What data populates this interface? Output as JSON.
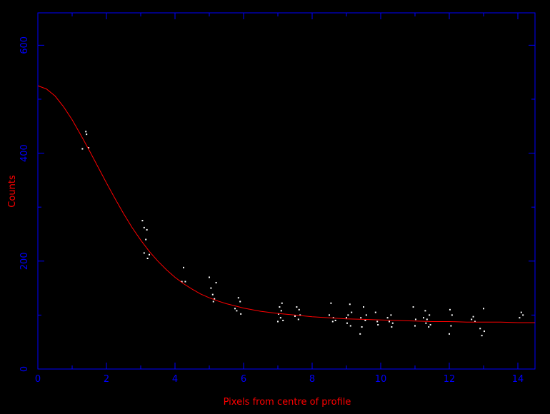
{
  "chart_data": {
    "type": "scatter",
    "title": "",
    "xlabel": "Pixels from centre of profile",
    "ylabel": "Counts",
    "xlim": [
      0,
      14.5
    ],
    "ylim": [
      0,
      660
    ],
    "x_ticks": [
      0,
      2,
      4,
      6,
      8,
      10,
      12,
      14
    ],
    "y_ticks": [
      0,
      200,
      400,
      600
    ],
    "x_tick_labels": [
      "0",
      "2",
      "4",
      "6",
      "8",
      "10",
      "12",
      "14"
    ],
    "y_tick_labels": [
      "0",
      "200",
      "400",
      "600"
    ],
    "grid": false,
    "legend": "none",
    "colors": {
      "background": "#000000",
      "axes": "#0000ff",
      "labels": "#ff0000",
      "fit_line": "#ff0000",
      "points": "#ffffff"
    },
    "fit_curve": {
      "x": [
        0,
        0.25,
        0.5,
        0.75,
        1,
        1.25,
        1.5,
        1.75,
        2,
        2.25,
        2.5,
        2.75,
        3,
        3.25,
        3.5,
        3.75,
        4,
        4.25,
        4.5,
        4.75,
        5,
        5.25,
        5.5,
        5.75,
        6,
        6.5,
        7,
        7.5,
        8,
        8.5,
        9,
        9.5,
        10,
        10.5,
        11,
        11.5,
        12,
        12.5,
        13,
        13.5,
        14,
        14.5
      ],
      "y": [
        525,
        519,
        506,
        486,
        462,
        434,
        405,
        375,
        345,
        316,
        288,
        262,
        239,
        218,
        200,
        184,
        170,
        158,
        148,
        139,
        132,
        126,
        121,
        117,
        113,
        107,
        103,
        100,
        97,
        95,
        93,
        92,
        91,
        90,
        89,
        88,
        88,
        87,
        87,
        87,
        86,
        86
      ]
    },
    "points": [
      {
        "x": 1.3,
        "y": 408
      },
      {
        "x": 1.4,
        "y": 440
      },
      {
        "x": 1.42,
        "y": 435
      },
      {
        "x": 1.48,
        "y": 410
      },
      {
        "x": 3.05,
        "y": 275
      },
      {
        "x": 3.1,
        "y": 262
      },
      {
        "x": 3.15,
        "y": 240
      },
      {
        "x": 3.18,
        "y": 258
      },
      {
        "x": 3.1,
        "y": 215
      },
      {
        "x": 3.2,
        "y": 205
      },
      {
        "x": 3.25,
        "y": 212
      },
      {
        "x": 4.2,
        "y": 162
      },
      {
        "x": 4.25,
        "y": 188
      },
      {
        "x": 4.3,
        "y": 162
      },
      {
        "x": 5.0,
        "y": 170
      },
      {
        "x": 5.05,
        "y": 150
      },
      {
        "x": 5.1,
        "y": 138
      },
      {
        "x": 5.12,
        "y": 125
      },
      {
        "x": 5.15,
        "y": 130
      },
      {
        "x": 5.2,
        "y": 160
      },
      {
        "x": 5.75,
        "y": 112
      },
      {
        "x": 5.8,
        "y": 108
      },
      {
        "x": 5.85,
        "y": 132
      },
      {
        "x": 5.9,
        "y": 125
      },
      {
        "x": 5.92,
        "y": 102
      },
      {
        "x": 7.0,
        "y": 88
      },
      {
        "x": 7.02,
        "y": 102
      },
      {
        "x": 7.05,
        "y": 115
      },
      {
        "x": 7.08,
        "y": 95
      },
      {
        "x": 7.1,
        "y": 108
      },
      {
        "x": 7.12,
        "y": 122
      },
      {
        "x": 7.15,
        "y": 90
      },
      {
        "x": 7.5,
        "y": 98
      },
      {
        "x": 7.55,
        "y": 115
      },
      {
        "x": 7.6,
        "y": 92
      },
      {
        "x": 7.62,
        "y": 110
      },
      {
        "x": 7.65,
        "y": 100
      },
      {
        "x": 8.5,
        "y": 100
      },
      {
        "x": 8.55,
        "y": 122
      },
      {
        "x": 8.6,
        "y": 88
      },
      {
        "x": 8.62,
        "y": 95
      },
      {
        "x": 8.68,
        "y": 90
      },
      {
        "x": 9.0,
        "y": 95
      },
      {
        "x": 9.02,
        "y": 85
      },
      {
        "x": 9.05,
        "y": 100
      },
      {
        "x": 9.1,
        "y": 120
      },
      {
        "x": 9.12,
        "y": 80
      },
      {
        "x": 9.15,
        "y": 105
      },
      {
        "x": 9.4,
        "y": 65
      },
      {
        "x": 9.42,
        "y": 95
      },
      {
        "x": 9.45,
        "y": 78
      },
      {
        "x": 9.5,
        "y": 115
      },
      {
        "x": 9.55,
        "y": 90
      },
      {
        "x": 9.58,
        "y": 100
      },
      {
        "x": 9.85,
        "y": 105
      },
      {
        "x": 9.9,
        "y": 88
      },
      {
        "x": 9.92,
        "y": 82
      },
      {
        "x": 10.2,
        "y": 95
      },
      {
        "x": 10.25,
        "y": 88
      },
      {
        "x": 10.3,
        "y": 100
      },
      {
        "x": 10.32,
        "y": 78
      },
      {
        "x": 10.35,
        "y": 85
      },
      {
        "x": 10.95,
        "y": 115
      },
      {
        "x": 11.0,
        "y": 80
      },
      {
        "x": 11.02,
        "y": 92
      },
      {
        "x": 11.25,
        "y": 95
      },
      {
        "x": 11.3,
        "y": 108
      },
      {
        "x": 11.32,
        "y": 85
      },
      {
        "x": 11.35,
        "y": 92
      },
      {
        "x": 11.4,
        "y": 78
      },
      {
        "x": 11.42,
        "y": 100
      },
      {
        "x": 11.45,
        "y": 82
      },
      {
        "x": 12.0,
        "y": 65
      },
      {
        "x": 12.02,
        "y": 110
      },
      {
        "x": 12.05,
        "y": 80
      },
      {
        "x": 12.08,
        "y": 100
      },
      {
        "x": 12.65,
        "y": 92
      },
      {
        "x": 12.7,
        "y": 97
      },
      {
        "x": 12.75,
        "y": 88
      },
      {
        "x": 12.9,
        "y": 75
      },
      {
        "x": 12.95,
        "y": 62
      },
      {
        "x": 13.0,
        "y": 112
      },
      {
        "x": 13.02,
        "y": 70
      },
      {
        "x": 14.05,
        "y": 95
      },
      {
        "x": 14.1,
        "y": 105
      },
      {
        "x": 14.15,
        "y": 100
      }
    ]
  }
}
